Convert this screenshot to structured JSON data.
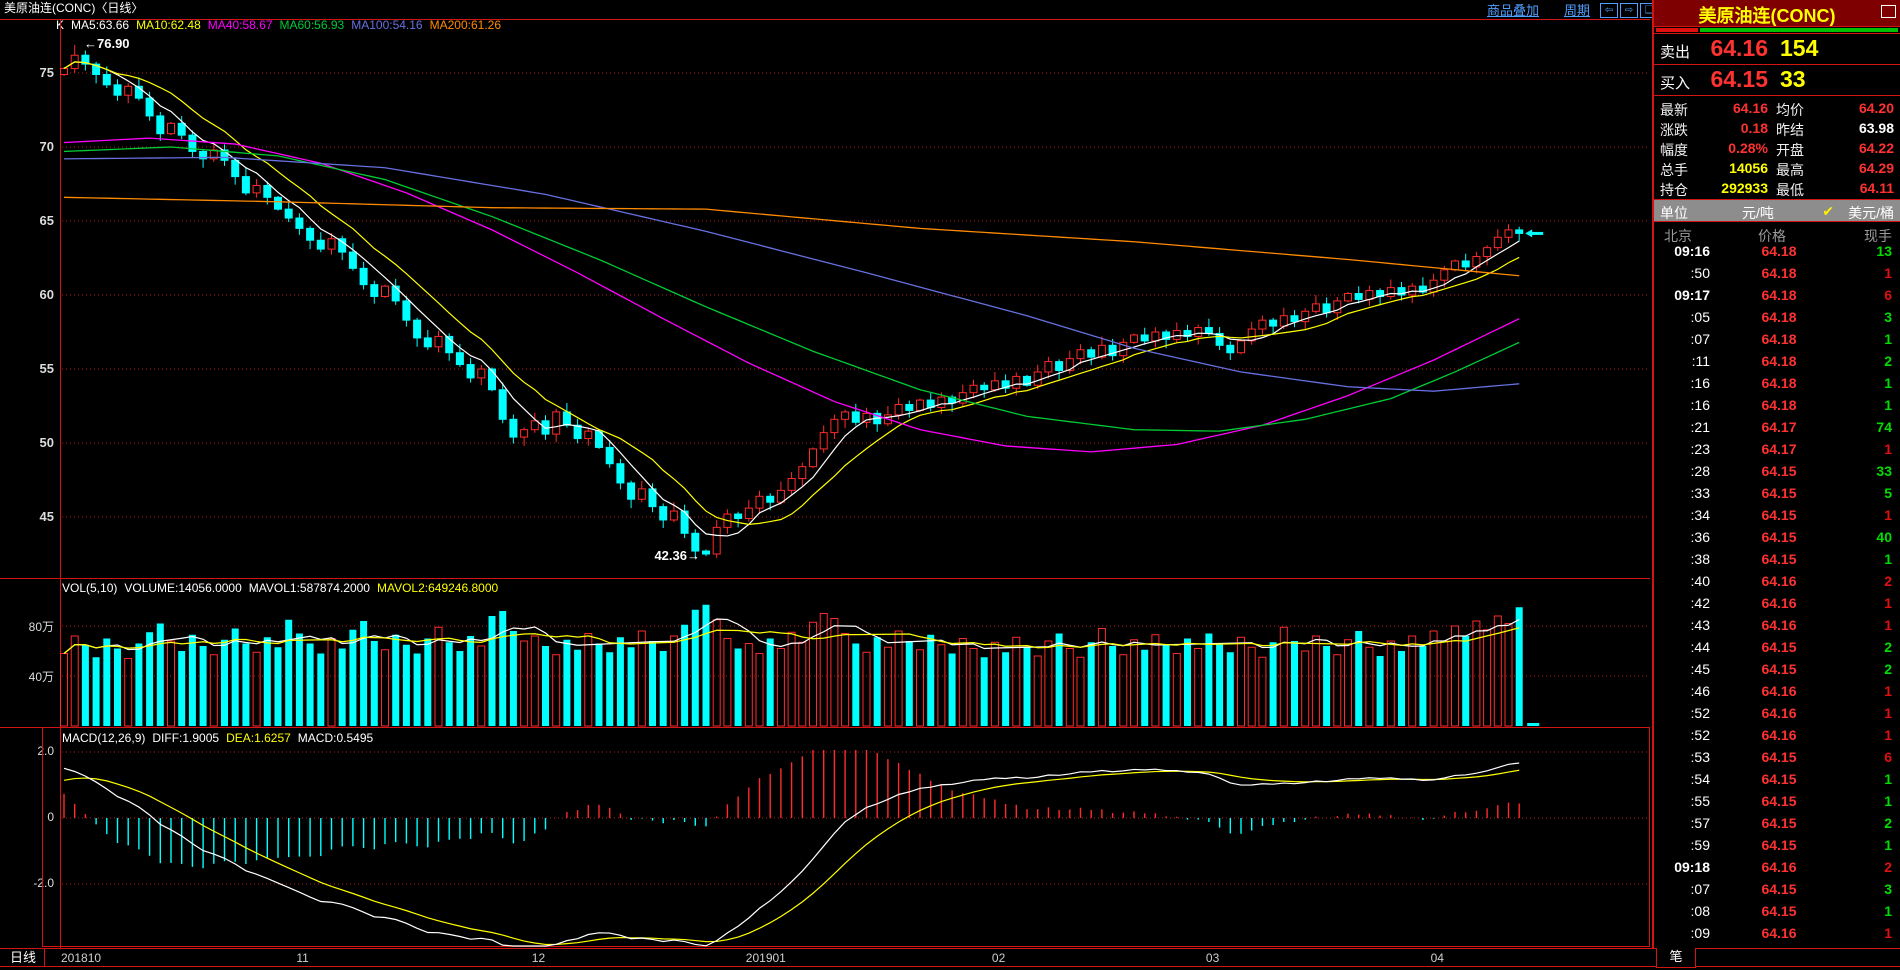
{
  "colors": {
    "border": "#d21414",
    "grid_dotted": "#b51c1c",
    "candle_up": "#ff2a2a",
    "candle_down": "#00ffff",
    "ma5": "#ffffff",
    "ma10": "#ffff00",
    "ma40": "#ff00ff",
    "ma60": "#00cc33",
    "ma100": "#6670e0",
    "ma200": "#ff8a00",
    "tick_up_green": "#00dd00",
    "tick_down_red": "#e01010",
    "panel_title_bg": "#7e0000"
  },
  "titlebar": {
    "title": "美原油连(CONC)〈日线〉",
    "menu_overlay": "商品叠加",
    "menu_period": "周期",
    "icon_left": "⇦",
    "icon_right": "⇨",
    "icon_split": "❏"
  },
  "ma_header": {
    "k": "K",
    "items": [
      {
        "label": "MA5:63.66",
        "color": "#ffffff"
      },
      {
        "label": "MA10:62.48",
        "color": "#ffff00"
      },
      {
        "label": "MA40:58.67",
        "color": "#ff00ff"
      },
      {
        "label": "MA60:56.93",
        "color": "#00cc33"
      },
      {
        "label": "MA100:54.16",
        "color": "#6670e0"
      },
      {
        "label": "MA200:61.26",
        "color": "#ff8a00"
      }
    ]
  },
  "vol_header": {
    "items": [
      {
        "label": "VOL(5,10)",
        "color": "#ffffff"
      },
      {
        "label": "VOLUME:14056.0000",
        "color": "#ffffff"
      },
      {
        "label": "MAVOL1:587874.2000",
        "color": "#ffffff"
      },
      {
        "label": "MAVOL2:649246.8000",
        "color": "#ffff00"
      }
    ]
  },
  "macd_header": {
    "items": [
      {
        "label": "MACD(12,26,9)",
        "color": "#ffffff"
      },
      {
        "label": "DIFF:1.9005",
        "color": "#ffffff"
      },
      {
        "label": "DEA:1.6257",
        "color": "#ffff00"
      },
      {
        "label": "MACD:0.5495",
        "color": "#ffffff"
      }
    ]
  },
  "annotations": {
    "high": "←76.90",
    "low": "42.36→"
  },
  "axes": {
    "price_labels": [
      "75",
      "70",
      "65",
      "60",
      "55",
      "50",
      "45"
    ],
    "vol_labels": [
      "80万",
      "40万"
    ],
    "macd_labels": [
      "2.0",
      "0",
      "-2.0"
    ],
    "x_tab": "日线",
    "x_labels": [
      {
        "text": "201810",
        "idx": 0
      },
      {
        "text": "11",
        "idx": 22
      },
      {
        "text": "12",
        "idx": 44
      },
      {
        "text": "201901",
        "idx": 64
      },
      {
        "text": "02",
        "idx": 87
      },
      {
        "text": "03",
        "idx": 107
      },
      {
        "text": "04",
        "idx": 128
      }
    ]
  },
  "quote": {
    "title": "美原油连(CONC)",
    "sell_label": "卖出",
    "sell_price": "64.16",
    "sell_qty": "154",
    "buy_label": "买入",
    "buy_price": "64.15",
    "buy_qty": "33",
    "stats": [
      {
        "l1": "最新",
        "v1": "64.16",
        "c1": "#ff3232",
        "l2": "均价",
        "v2": "64.20",
        "c2": "#ff3232"
      },
      {
        "l1": "涨跌",
        "v1": "0.18",
        "c1": "#ff3232",
        "l2": "昨结",
        "v2": "63.98",
        "c2": "#ffffff"
      },
      {
        "l1": "幅度",
        "v1": "0.28%",
        "c1": "#ff3232",
        "l2": "开盘",
        "v2": "64.22",
        "c2": "#ff3232"
      },
      {
        "l1": "总手",
        "v1": "14056",
        "c1": "#ffff00",
        "l2": "最高",
        "v2": "64.29",
        "c2": "#ff3232"
      },
      {
        "l1": "持仓",
        "v1": "292933",
        "c1": "#ffff00",
        "l2": "最低",
        "v2": "64.11",
        "c2": "#ff3232"
      }
    ],
    "unit_label": "单位",
    "unit_opt1": "元/吨",
    "unit_check": "✔",
    "unit_opt2": "美元/桶",
    "tick_cols": {
      "time": "北京",
      "price": "价格",
      "vol": "现手"
    },
    "ticks": [
      {
        "t": "09:16",
        "b": 1,
        "p": "64.18",
        "v": "13",
        "c": "g"
      },
      {
        "t": ":50",
        "p": "64.18",
        "v": "1",
        "c": "r"
      },
      {
        "t": "09:17",
        "b": 1,
        "p": "64.18",
        "v": "6",
        "c": "r"
      },
      {
        "t": ":05",
        "p": "64.18",
        "v": "3",
        "c": "g"
      },
      {
        "t": ":07",
        "p": "64.18",
        "v": "1",
        "c": "g"
      },
      {
        "t": ":11",
        "p": "64.18",
        "v": "2",
        "c": "g"
      },
      {
        "t": ":16",
        "p": "64.18",
        "v": "1",
        "c": "g"
      },
      {
        "t": ":16",
        "p": "64.18",
        "v": "1",
        "c": "g"
      },
      {
        "t": ":21",
        "p": "64.17",
        "v": "74",
        "c": "g"
      },
      {
        "t": ":23",
        "p": "64.17",
        "v": "1",
        "c": "r"
      },
      {
        "t": ":28",
        "p": "64.15",
        "v": "33",
        "c": "g"
      },
      {
        "t": ":33",
        "p": "64.15",
        "v": "5",
        "c": "g"
      },
      {
        "t": ":34",
        "p": "64.15",
        "v": "1",
        "c": "r"
      },
      {
        "t": ":36",
        "p": "64.15",
        "v": "40",
        "c": "g"
      },
      {
        "t": ":38",
        "p": "64.15",
        "v": "1",
        "c": "g"
      },
      {
        "t": ":40",
        "p": "64.16",
        "v": "2",
        "c": "r"
      },
      {
        "t": ":42",
        "p": "64.16",
        "v": "1",
        "c": "r"
      },
      {
        "t": ":43",
        "p": "64.16",
        "v": "1",
        "c": "r"
      },
      {
        "t": ":44",
        "p": "64.15",
        "v": "2",
        "c": "g"
      },
      {
        "t": ":45",
        "p": "64.15",
        "v": "2",
        "c": "g"
      },
      {
        "t": ":46",
        "p": "64.16",
        "v": "1",
        "c": "r"
      },
      {
        "t": ":52",
        "p": "64.16",
        "v": "1",
        "c": "r"
      },
      {
        "t": ":52",
        "p": "64.16",
        "v": "1",
        "c": "r"
      },
      {
        "t": ":53",
        "p": "64.15",
        "v": "6",
        "c": "r"
      },
      {
        "t": ":54",
        "p": "64.15",
        "v": "1",
        "c": "g"
      },
      {
        "t": ":55",
        "p": "64.15",
        "v": "1",
        "c": "g"
      },
      {
        "t": ":57",
        "p": "64.15",
        "v": "2",
        "c": "g"
      },
      {
        "t": ":59",
        "p": "64.15",
        "v": "1",
        "c": "g"
      },
      {
        "t": "09:18",
        "b": 1,
        "p": "64.16",
        "v": "2",
        "c": "r"
      },
      {
        "t": ":07",
        "p": "64.15",
        "v": "3",
        "c": "g"
      },
      {
        "t": ":08",
        "p": "64.15",
        "v": "1",
        "c": "g"
      },
      {
        "t": ":09",
        "p": "64.16",
        "v": "1",
        "c": "r"
      }
    ],
    "bottom_tab": "笔"
  },
  "chart_data": {
    "type": "candlestick+volume+macd",
    "title": "美原油连(CONC) 日线",
    "ylim": [
      41,
      78
    ],
    "price_gridlines": [
      75,
      70,
      65,
      60,
      55,
      50,
      45
    ],
    "high_annotation": {
      "index": 1,
      "price": 76.9
    },
    "low_annotation": {
      "index": 60,
      "price": 42.36
    },
    "last_price": 64.16,
    "closes": [
      75.3,
      76.2,
      75.6,
      74.9,
      74.2,
      73.5,
      74.1,
      73.3,
      72.1,
      70.9,
      71.6,
      70.8,
      69.7,
      69.2,
      69.8,
      69.1,
      68.0,
      66.9,
      67.4,
      66.6,
      65.8,
      65.2,
      64.5,
      63.7,
      63.1,
      63.8,
      62.9,
      61.8,
      60.7,
      59.9,
      60.6,
      59.6,
      58.3,
      57.1,
      56.5,
      57.2,
      56.1,
      55.3,
      54.4,
      55.0,
      53.6,
      51.6,
      50.4,
      50.9,
      51.5,
      50.6,
      52.1,
      51.2,
      50.3,
      50.8,
      49.7,
      48.6,
      47.3,
      46.2,
      46.9,
      45.7,
      44.8,
      45.4,
      43.9,
      42.7,
      42.5,
      44.3,
      45.2,
      44.9,
      45.6,
      46.4,
      46.0,
      46.8,
      47.6,
      48.4,
      49.6,
      50.7,
      51.6,
      52.1,
      51.4,
      52.0,
      51.3,
      51.9,
      52.6,
      52.2,
      52.9,
      52.4,
      53.1,
      52.7,
      53.4,
      53.9,
      53.6,
      54.2,
      53.7,
      54.5,
      53.9,
      54.8,
      55.5,
      54.9,
      55.7,
      56.3,
      55.8,
      56.6,
      55.9,
      56.8,
      57.3,
      56.9,
      57.5,
      57.0,
      57.6,
      57.2,
      57.8,
      57.4,
      56.6,
      56.1,
      56.9,
      57.7,
      58.3,
      57.9,
      58.6,
      58.2,
      58.9,
      59.4,
      58.8,
      59.6,
      60.1,
      59.7,
      60.3,
      59.9,
      60.5,
      60.0,
      60.6,
      60.2,
      61.0,
      61.7,
      62.3,
      61.9,
      62.6,
      63.2,
      63.9,
      64.4,
      64.16
    ],
    "volumes_wan": [
      58,
      72,
      65,
      55,
      70,
      62,
      54,
      66,
      75,
      82,
      68,
      60,
      73,
      64,
      57,
      69,
      78,
      66,
      59,
      71,
      63,
      85,
      74,
      66,
      58,
      70,
      62,
      77,
      84,
      68,
      61,
      73,
      65,
      58,
      70,
      79,
      67,
      60,
      72,
      64,
      88,
      92,
      76,
      68,
      72,
      64,
      57,
      69,
      61,
      74,
      66,
      59,
      71,
      63,
      76,
      68,
      60,
      72,
      81,
      93,
      97,
      85,
      70,
      62,
      66,
      58,
      70,
      62,
      75,
      67,
      83,
      90,
      86,
      74,
      66,
      59,
      71,
      63,
      76,
      68,
      61,
      73,
      65,
      58,
      70,
      62,
      55,
      67,
      59,
      71,
      63,
      56,
      68,
      74,
      62,
      55,
      67,
      78,
      64,
      57,
      69,
      61,
      73,
      65,
      58,
      70,
      62,
      74,
      66,
      59,
      71,
      63,
      55,
      67,
      79,
      68,
      60,
      72,
      64,
      57,
      69,
      76,
      63,
      56,
      68,
      60,
      72,
      64,
      76,
      68,
      80,
      72,
      84,
      77,
      88,
      82,
      95
    ],
    "vol_gridlines_wan": [
      80,
      40
    ],
    "macd_gridlines": [
      2.0,
      0,
      -2.0
    ],
    "ma_polylines": {
      "ma40": [
        [
          0,
          70.3
        ],
        [
          8,
          70.6
        ],
        [
          16,
          70.2
        ],
        [
          24,
          68.9
        ],
        [
          32,
          66.9
        ],
        [
          40,
          64.4
        ],
        [
          48,
          61.5
        ],
        [
          56,
          58.4
        ],
        [
          64,
          55.4
        ],
        [
          72,
          52.8
        ],
        [
          80,
          50.9
        ],
        [
          88,
          49.8
        ],
        [
          96,
          49.4
        ],
        [
          104,
          49.9
        ],
        [
          112,
          51.2
        ],
        [
          120,
          53.2
        ],
        [
          128,
          55.6
        ],
        [
          136,
          58.4
        ]
      ],
      "ma60": [
        [
          0,
          69.7
        ],
        [
          10,
          70.0
        ],
        [
          20,
          69.4
        ],
        [
          30,
          67.8
        ],
        [
          40,
          65.3
        ],
        [
          50,
          62.4
        ],
        [
          60,
          59.2
        ],
        [
          70,
          56.2
        ],
        [
          80,
          53.6
        ],
        [
          90,
          51.8
        ],
        [
          100,
          50.9
        ],
        [
          108,
          50.8
        ],
        [
          116,
          51.6
        ],
        [
          124,
          53.0
        ],
        [
          130,
          54.8
        ],
        [
          136,
          56.8
        ]
      ],
      "ma100": [
        [
          0,
          69.2
        ],
        [
          15,
          69.3
        ],
        [
          30,
          68.6
        ],
        [
          45,
          66.8
        ],
        [
          60,
          64.3
        ],
        [
          75,
          61.5
        ],
        [
          90,
          58.6
        ],
        [
          100,
          56.4
        ],
        [
          110,
          54.8
        ],
        [
          120,
          53.8
        ],
        [
          128,
          53.5
        ],
        [
          136,
          54.0
        ]
      ],
      "ma200": [
        [
          0,
          66.6
        ],
        [
          20,
          66.3
        ],
        [
          40,
          65.9
        ],
        [
          60,
          65.8
        ],
        [
          80,
          64.5
        ],
        [
          100,
          63.6
        ],
        [
          120,
          62.4
        ],
        [
          136,
          61.3
        ]
      ]
    }
  }
}
